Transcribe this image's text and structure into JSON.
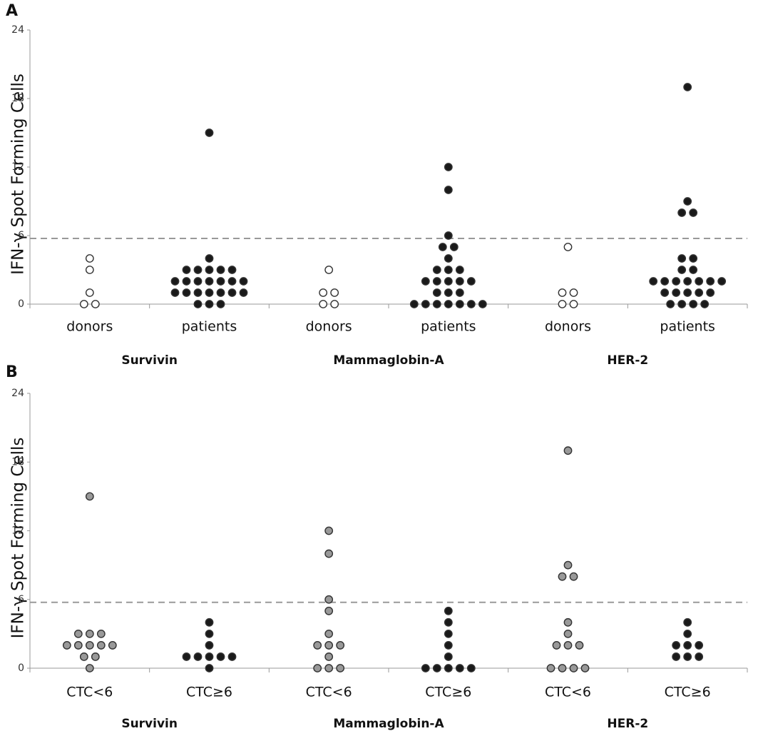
{
  "chart_data": [
    {
      "type": "dot",
      "panel": "A",
      "ylabel": "IFN-γ Spot Forming Cells",
      "categories": [
        "donors",
        "patients",
        "donors",
        "patients",
        "donors",
        "patients"
      ],
      "groups": [
        "Survivin",
        "Mammaglobin-A",
        "HER-2"
      ],
      "colors": [
        "#ffffff",
        "#1a1a1a",
        "#ffffff",
        "#1a1a1a",
        "#ffffff",
        "#1a1a1a"
      ],
      "values": [
        [
          4,
          3,
          1,
          0,
          0
        ],
        [
          15,
          4,
          3,
          3,
          3,
          3,
          3,
          2,
          2,
          2,
          2,
          2,
          2,
          2,
          1,
          1,
          1,
          1,
          1,
          1,
          1,
          0,
          0,
          0
        ],
        [
          3,
          1,
          1,
          0,
          0
        ],
        [
          12,
          10,
          6,
          5,
          5,
          4,
          3,
          3,
          3,
          2,
          2,
          2,
          2,
          2,
          1,
          1,
          1,
          0,
          0,
          0,
          0,
          0,
          0,
          0
        ],
        [
          5,
          1,
          1,
          0,
          0
        ],
        [
          19,
          9,
          8,
          8,
          4,
          4,
          3,
          3,
          2,
          2,
          2,
          2,
          2,
          2,
          2,
          1,
          1,
          1,
          1,
          1,
          0,
          0,
          0,
          0
        ]
      ],
      "threshold": 5.75,
      "ylim": [
        0,
        24
      ],
      "yticks": [
        0,
        6,
        12,
        18,
        24
      ]
    },
    {
      "type": "dot",
      "panel": "B",
      "ylabel": "IFN-γ Spot Forming Cells",
      "categories": [
        "CTC<6",
        "CTC≥6",
        "CTC<6",
        "CTC≥6",
        "CTC<6",
        "CTC≥6"
      ],
      "groups": [
        "Survivin",
        "Mammaglobin-A",
        "HER-2"
      ],
      "colors": [
        "#999999",
        "#1a1a1a",
        "#999999",
        "#1a1a1a",
        "#999999",
        "#1a1a1a"
      ],
      "values": [
        [
          15,
          3,
          3,
          3,
          2,
          2,
          2,
          2,
          2,
          1,
          1,
          0
        ],
        [
          4,
          3,
          2,
          1,
          1,
          1,
          1,
          1,
          0
        ],
        [
          12,
          10,
          6,
          5,
          3,
          2,
          2,
          2,
          1,
          0,
          0,
          0
        ],
        [
          5,
          4,
          3,
          2,
          1,
          0,
          0,
          0,
          0,
          0
        ],
        [
          19,
          9,
          8,
          8,
          4,
          3,
          2,
          2,
          2,
          0,
          0,
          0,
          0
        ],
        [
          4,
          3,
          2,
          2,
          2,
          1,
          1,
          1
        ]
      ],
      "threshold": 5.75,
      "ylim": [
        0,
        24
      ],
      "yticks": [
        0,
        6,
        12,
        18,
        24
      ]
    }
  ]
}
